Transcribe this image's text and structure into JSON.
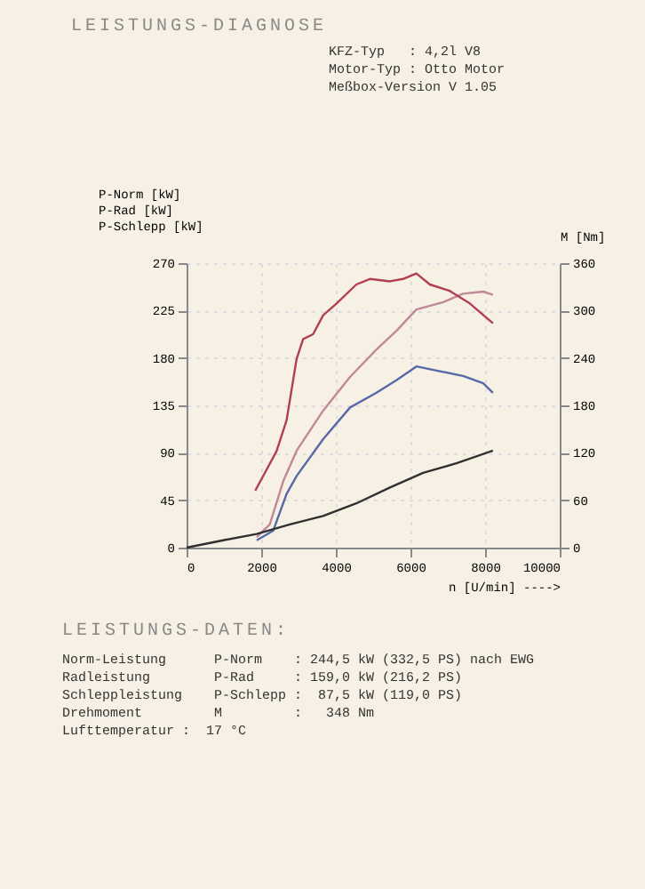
{
  "chart_data": {
    "type": "line",
    "title": "LEISTUNGS-DIAGNOSE",
    "subtitle": "LEISTUNGS-DATEN:",
    "xlabel": "n [U/min] ---->",
    "ylabel": "P-Norm [kW]\nP-Rad [kW]\nP-Schlepp [kW]",
    "y2label": "M [Nm]",
    "xlim": [
      0,
      10000
    ],
    "xticks": [
      0,
      2000,
      4000,
      6000,
      8000,
      10000
    ],
    "ylim": [
      0,
      270
    ],
    "yticks": [
      0,
      45,
      90,
      135,
      180,
      225,
      270
    ],
    "y2lim": [
      0,
      360
    ],
    "y2ticks": [
      0,
      60,
      120,
      180,
      240,
      300,
      360
    ],
    "grid": true,
    "legend": false,
    "series": [
      {
        "color": "#c08898",
        "x": [
          1880,
          2230,
          2590,
          2950,
          3660,
          4380,
          5090,
          5630,
          6160,
          6880,
          7410,
          7950,
          8210
        ],
        "values": [
          10,
          22,
          63,
          92,
          130,
          162,
          188,
          206,
          226,
          233,
          241,
          243,
          240
        ]
      },
      {
        "color": "#5868a8",
        "x": [
          1880,
          2320,
          2680,
          2950,
          3660,
          4380,
          5090,
          5630,
          6160,
          6700,
          7410,
          7950,
          8210
        ],
        "values": [
          7,
          16,
          51,
          68,
          103,
          133,
          147,
          159,
          172,
          168,
          163,
          156,
          147
        ]
      },
      {
        "color": "#303030",
        "x": [
          0,
          980,
          1880,
          2770,
          3660,
          4550,
          5450,
          6340,
          7230,
          8210
        ],
        "values": [
          0,
          7,
          13,
          22,
          30,
          42,
          57,
          71,
          80,
          92
        ]
      },
      {
        "color": "#b04050",
        "axis": "y2",
        "x": [
          1840,
          2410,
          2680,
          2950,
          3125,
          3390,
          3660,
          4020,
          4550,
          4910,
          5450,
          5800,
          6160,
          6520,
          7050,
          7590,
          8210
        ],
        "values": [
          72,
          122,
          161,
          239,
          264,
          270,
          294,
          309,
          333,
          340,
          337,
          340,
          347,
          333,
          325,
          309,
          284
        ]
      }
    ],
    "annotations": [
      "KFZ-Typ   : 4,2l V8",
      "Motor-Typ : Otto Motor",
      "Meßbox-Version V 1.05",
      "Norm-Leistung      P-Norm    : 244,5 kW (332,5 PS) nach EWG",
      "Radleistung        P-Rad     : 159,0 kW (216,2 PS)",
      "Schleppleistung    P-Schlepp :  87,5 kW (119,0 PS)",
      "Drehmoment         M         :   348 Nm",
      "Lufttemperatur :  17 °C"
    ]
  }
}
